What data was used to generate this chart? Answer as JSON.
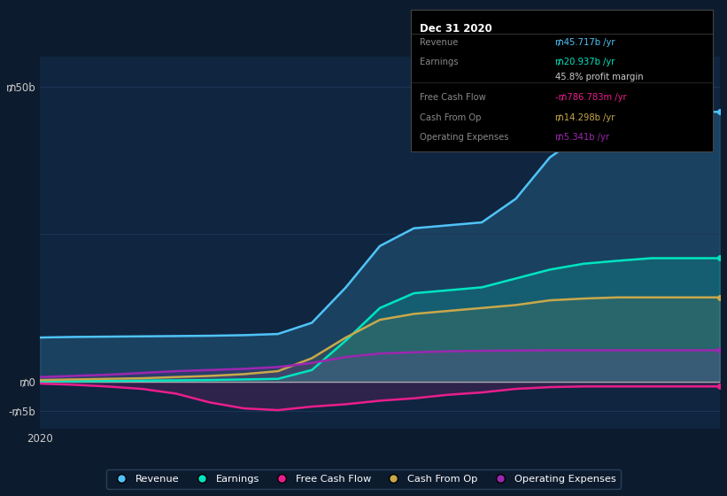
{
  "background_color": "#0d1b2e",
  "plot_bg_color": "#0f2540",
  "grid_color": "#1e3558",
  "title_text": "Dec 31 2020",
  "ytick_positions": [
    -5,
    0,
    50
  ],
  "ytick_labels": [
    "-₥5b",
    "₥0",
    "₥50b"
  ],
  "xlabel": "2020",
  "legend_labels": [
    "Revenue",
    "Earnings",
    "Free Cash Flow",
    "Cash From Op",
    "Operating Expenses"
  ],
  "legend_dot_colors": [
    "#4fc3f7",
    "#00e5c0",
    "#e91e8c",
    "#c8a84b",
    "#9c27b0"
  ],
  "line_colors": [
    "#4fc3f7",
    "#00e5c0",
    "#e91e8c",
    "#c8a84b",
    "#9c27b0"
  ],
  "fill_alpha": 0.18,
  "info_box": {
    "title": "Dec 31 2020",
    "rows": [
      {
        "label": "Revenue",
        "value": "₥45.717b /yr",
        "value_color": "#4fc3f7",
        "divider_after": false
      },
      {
        "label": "Earnings",
        "value": "₥20.937b /yr",
        "value_color": "#00e5c0",
        "divider_after": false
      },
      {
        "label": "",
        "value": "45.8% profit margin",
        "value_color": "#cccccc",
        "divider_after": true
      },
      {
        "label": "Free Cash Flow",
        "value": "-₥786.783m /yr",
        "value_color": "#e91e8c",
        "divider_after": false
      },
      {
        "label": "Cash From Op",
        "value": "₥14.298b /yr",
        "value_color": "#c8a84b",
        "divider_after": false
      },
      {
        "label": "Operating Expenses",
        "value": "₥5.341b /yr",
        "value_color": "#9c27b0",
        "divider_after": false
      }
    ]
  },
  "x_data": [
    0,
    1,
    2,
    3,
    4,
    5,
    6,
    7,
    8,
    9,
    10,
    11,
    12,
    13,
    14,
    15,
    16,
    17,
    18,
    19,
    20
  ],
  "revenue": [
    7.5,
    7.6,
    7.65,
    7.7,
    7.75,
    7.8,
    7.9,
    8.1,
    10.0,
    16.0,
    23.0,
    26.0,
    26.5,
    27.0,
    31.0,
    38.0,
    42.0,
    44.5,
    45.717,
    45.717,
    45.717
  ],
  "earnings": [
    0.1,
    0.1,
    0.15,
    0.2,
    0.25,
    0.3,
    0.4,
    0.5,
    2.0,
    7.0,
    12.5,
    15.0,
    15.5,
    16.0,
    17.5,
    19.0,
    20.0,
    20.5,
    20.937,
    20.937,
    20.937
  ],
  "free_cash": [
    -0.3,
    -0.5,
    -0.8,
    -1.2,
    -2.0,
    -3.5,
    -4.5,
    -4.8,
    -4.2,
    -3.8,
    -3.2,
    -2.8,
    -2.2,
    -1.8,
    -1.2,
    -0.9,
    -0.786,
    -0.786,
    -0.786,
    -0.786,
    -0.786
  ],
  "cash_from_op": [
    0.3,
    0.4,
    0.5,
    0.6,
    0.8,
    1.0,
    1.3,
    1.8,
    4.0,
    7.5,
    10.5,
    11.5,
    12.0,
    12.5,
    13.0,
    13.8,
    14.1,
    14.298,
    14.298,
    14.298,
    14.298
  ],
  "op_expenses": [
    0.8,
    1.0,
    1.2,
    1.5,
    1.8,
    2.0,
    2.2,
    2.5,
    3.2,
    4.2,
    4.8,
    5.0,
    5.15,
    5.25,
    5.3,
    5.341,
    5.341,
    5.341,
    5.341,
    5.341,
    5.341
  ]
}
